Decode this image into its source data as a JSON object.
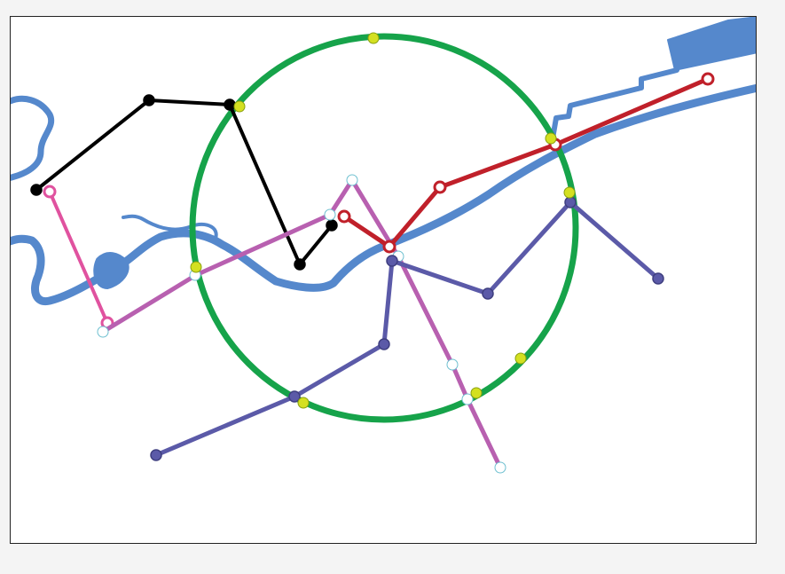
{
  "map": {
    "colors": {
      "background": "#ffffff",
      "frame": "#222222",
      "page": "#f4f4f4",
      "river": "#5588cc",
      "ring_line": "#16a34a",
      "black_line": "#000000",
      "red_line": "#c0202a",
      "pink_line": "#e0529f",
      "magenta_line": "#b860b0",
      "purple_line": "#5b5aa8",
      "interchange_fill": "#d4e021",
      "hollow_station_fill": "#ffffff",
      "light_station_stroke": "#6fc0d0"
    },
    "lines": [
      {
        "id": "ring",
        "color": "#16a34a",
        "shape": "circle"
      },
      {
        "id": "black",
        "color": "#000000",
        "station_style": "filled"
      },
      {
        "id": "red",
        "color": "#c0202a",
        "station_style": "hollow"
      },
      {
        "id": "pink",
        "color": "#e0529f",
        "station_style": "hollow"
      },
      {
        "id": "magenta",
        "color": "#b860b0",
        "station_style": "hollow-light"
      },
      {
        "id": "purple",
        "color": "#5b5aa8",
        "station_style": "filled"
      }
    ],
    "features": [
      "river"
    ]
  }
}
